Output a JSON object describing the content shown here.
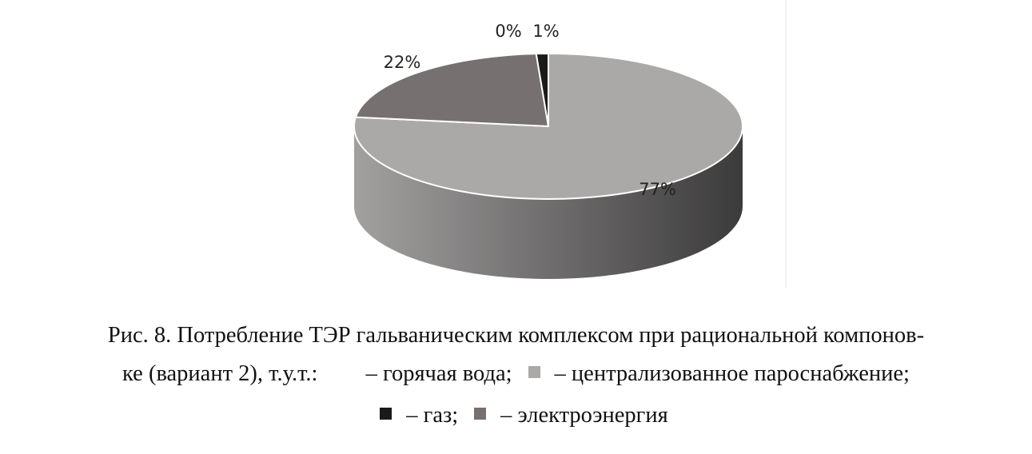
{
  "chart_data": {
    "type": "pie3d",
    "categories": [
      "– централизованное пароснабжение;",
      "– электроэнергия",
      "– горячая вода;",
      "– газ;"
    ],
    "values": [
      77,
      22,
      0,
      1
    ],
    "value_labels": [
      "77%",
      "22%",
      "0%",
      "1%"
    ],
    "colors": [
      "#aba8a8",
      "#767170",
      "#ffffff",
      "#1a1a1a"
    ]
  },
  "caption": {
    "lines": [
      "Рис. 8. Потребление ТЭР гальваническим комплексом при рациональной компонов-",
      "ке (вариант 2), т.у.т.:"
    ]
  }
}
